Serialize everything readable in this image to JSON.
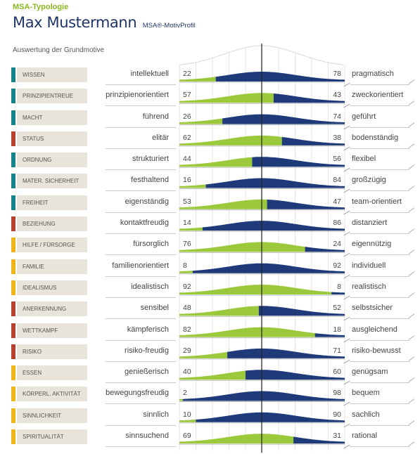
{
  "header": {
    "brand": "MSA-Typologie",
    "name": "Max Mustermann",
    "subtitle": "MSA®-MotivProfil",
    "section": "Auswertung der Grundmotive"
  },
  "colors": {
    "left_fill": "#9cc83c",
    "right_fill": "#1e3a78",
    "teal": "#19838a",
    "red": "#b6422b",
    "yellow": "#f0b41b",
    "label_bg": "#e8e4da"
  },
  "chart_data": {
    "type": "bar",
    "title": "",
    "scale": [
      0,
      100
    ],
    "rows": [
      {
        "category": "WISSEN",
        "flag": "teal",
        "left": "intellektuell",
        "right": "pragmatisch",
        "lv": 22,
        "rv": 78
      },
      {
        "category": "PRINZIPIENTREUE",
        "flag": "teal",
        "left": "prinzipienorientiert",
        "right": "zweckorientiert",
        "lv": 57,
        "rv": 43
      },
      {
        "category": "MACHT",
        "flag": "teal",
        "left": "führend",
        "right": "geführt",
        "lv": 26,
        "rv": 74
      },
      {
        "category": "STATUS",
        "flag": "red",
        "left": "elitär",
        "right": "bodenständig",
        "lv": 62,
        "rv": 38
      },
      {
        "category": "ORDNUNG",
        "flag": "teal",
        "left": "strukturiert",
        "right": "flexibel",
        "lv": 44,
        "rv": 56
      },
      {
        "category": "MATER. SICHERHEIT",
        "flag": "teal",
        "left": "festhaltend",
        "right": "großzügig",
        "lv": 16,
        "rv": 84
      },
      {
        "category": "FREIHEIT",
        "flag": "teal",
        "left": "eigenständig",
        "right": "team-orientiert",
        "lv": 53,
        "rv": 47
      },
      {
        "category": "BEZIEHUNG",
        "flag": "red",
        "left": "kontaktfreudig",
        "right": "distanziert",
        "lv": 14,
        "rv": 86
      },
      {
        "category": "HILFE / FÜRSORGE",
        "flag": "yellow",
        "left": "fürsorglich",
        "right": "eigennützig",
        "lv": 76,
        "rv": 24
      },
      {
        "category": "FAMILIE",
        "flag": "yellow",
        "left": "familienorientiert",
        "right": "individuell",
        "lv": 8,
        "rv": 92
      },
      {
        "category": "IDEALISMUS",
        "flag": "yellow",
        "left": "idealistisch",
        "right": "realistisch",
        "lv": 92,
        "rv": 8
      },
      {
        "category": "ANERKENNUNG",
        "flag": "red",
        "left": "sensibel",
        "right": "selbstsicher",
        "lv": 48,
        "rv": 52
      },
      {
        "category": "WETTKAMPF",
        "flag": "red",
        "left": "kämpferisch",
        "right": "ausgleichend",
        "lv": 82,
        "rv": 18
      },
      {
        "category": "RISIKO",
        "flag": "red",
        "left": "risiko-freudig",
        "right": "risiko-bewusst",
        "lv": 29,
        "rv": 71
      },
      {
        "category": "ESSEN",
        "flag": "yellow",
        "left": "genießerisch",
        "right": "genügsam",
        "lv": 40,
        "rv": 60
      },
      {
        "category": "KÖRPERL. AKTIVITÄT",
        "flag": "yellow",
        "left": "bewegungsfreudig",
        "right": "bequem",
        "lv": 2,
        "rv": 98
      },
      {
        "category": "SINNLICHKEIT",
        "flag": "yellow",
        "left": "sinnlich",
        "right": "sachlich",
        "lv": 10,
        "rv": 90
      },
      {
        "category": "SPIRITUALITÄT",
        "flag": "yellow",
        "left": "sinnsuchend",
        "right": "rational",
        "lv": 69,
        "rv": 31
      }
    ]
  }
}
